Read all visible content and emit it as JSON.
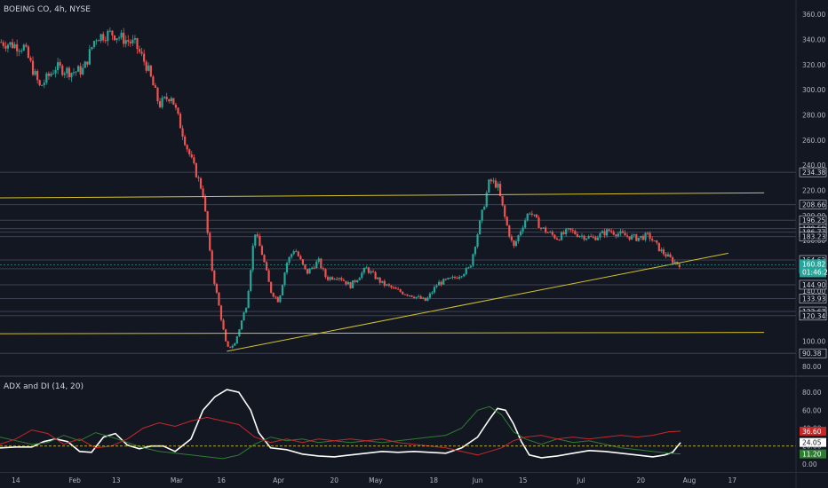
{
  "header": {
    "title": "BOEING CO, 4h, NYSE"
  },
  "indicator": {
    "title": "ADX and DI (14, 20)"
  },
  "colors": {
    "background": "#131722",
    "up": "#26a69a",
    "down": "#ef5350",
    "trendline": "#d4c12b",
    "hline": "#3d4251",
    "adx": "#ffffff",
    "plus_di": "#2e7d32",
    "minus_di": "#c62828",
    "threshold": "#e6d23a"
  },
  "chart_data": [
    {
      "type": "candlestick",
      "title": "BOEING CO, 4h, NYSE",
      "ylim": [
        75,
        370
      ],
      "yticks": [
        80,
        100,
        120,
        140,
        160,
        180,
        200,
        220,
        240,
        260,
        280,
        300,
        320,
        340,
        360
      ],
      "xlabels": [
        {
          "label": "14",
          "pos": 0.02
        },
        {
          "label": "Feb",
          "pos": 0.094
        },
        {
          "label": "13",
          "pos": 0.146
        },
        {
          "label": "Mar",
          "pos": 0.222
        },
        {
          "label": "16",
          "pos": 0.278
        },
        {
          "label": "Apr",
          "pos": 0.35
        },
        {
          "label": "20",
          "pos": 0.42
        },
        {
          "label": "May",
          "pos": 0.472
        },
        {
          "label": "18",
          "pos": 0.545
        },
        {
          "label": "Jun",
          "pos": 0.6
        },
        {
          "label": "15",
          "pos": 0.657
        },
        {
          "label": "Jul",
          "pos": 0.73
        },
        {
          "label": "20",
          "pos": 0.805
        },
        {
          "label": "Aug",
          "pos": 0.866
        },
        {
          "label": "17",
          "pos": 0.92
        }
      ],
      "price_path": [
        [
          0.0,
          338
        ],
        [
          0.03,
          334
        ],
        [
          0.05,
          302
        ],
        [
          0.07,
          318
        ],
        [
          0.09,
          314
        ],
        [
          0.105,
          316
        ],
        [
          0.12,
          342
        ],
        [
          0.14,
          345
        ],
        [
          0.17,
          336
        ],
        [
          0.185,
          318
        ],
        [
          0.2,
          288
        ],
        [
          0.215,
          296
        ],
        [
          0.235,
          254
        ],
        [
          0.245,
          236
        ],
        [
          0.255,
          218
        ],
        [
          0.265,
          162
        ],
        [
          0.275,
          128
        ],
        [
          0.285,
          94
        ],
        [
          0.295,
          98
        ],
        [
          0.31,
          130
        ],
        [
          0.32,
          188
        ],
        [
          0.33,
          168
        ],
        [
          0.34,
          140
        ],
        [
          0.35,
          132
        ],
        [
          0.36,
          162
        ],
        [
          0.37,
          174
        ],
        [
          0.385,
          154
        ],
        [
          0.4,
          164
        ],
        [
          0.41,
          150
        ],
        [
          0.425,
          152
        ],
        [
          0.44,
          144
        ],
        [
          0.46,
          158
        ],
        [
          0.48,
          146
        ],
        [
          0.5,
          140
        ],
        [
          0.52,
          136
        ],
        [
          0.535,
          132
        ],
        [
          0.55,
          146
        ],
        [
          0.57,
          150
        ],
        [
          0.59,
          158
        ],
        [
          0.605,
          200
        ],
        [
          0.615,
          228
        ],
        [
          0.625,
          224
        ],
        [
          0.635,
          196
        ],
        [
          0.645,
          174
        ],
        [
          0.655,
          190
        ],
        [
          0.665,
          204
        ],
        [
          0.68,
          190
        ],
        [
          0.7,
          182
        ],
        [
          0.715,
          188
        ],
        [
          0.73,
          184
        ],
        [
          0.745,
          182
        ],
        [
          0.765,
          188
        ],
        [
          0.785,
          184
        ],
        [
          0.8,
          182
        ],
        [
          0.815,
          184
        ],
        [
          0.83,
          172
        ],
        [
          0.845,
          164
        ],
        [
          0.855,
          160.82
        ]
      ],
      "levels": [
        234.38,
        208.66,
        196.25,
        189.59,
        186.77,
        183.23,
        164.62,
        157.7,
        144.9,
        133.93,
        123.67,
        120.34,
        90.38
      ],
      "current": {
        "price": "160.82",
        "countdown": "01:46:25"
      },
      "trendlines": [
        {
          "from": [
            0.0,
            214
          ],
          "to": [
            0.96,
            218
          ]
        },
        {
          "from": [
            0.0,
            106
          ],
          "to": [
            0.96,
            107
          ]
        },
        {
          "from": [
            0.285,
            92
          ],
          "to": [
            0.915,
            170
          ]
        }
      ]
    },
    {
      "type": "line",
      "title": "ADX and DI (14, 20)",
      "ylim": [
        -5,
        92
      ],
      "yticks": [
        0,
        20,
        40,
        60,
        80
      ],
      "threshold": 20,
      "labeled_values": [
        "36.60",
        "24.05",
        "11.20"
      ],
      "series": [
        {
          "key": "adx",
          "values": [
            [
              0,
              18
            ],
            [
              0.02,
              19
            ],
            [
              0.04,
              19
            ],
            [
              0.055,
              25
            ],
            [
              0.07,
              28
            ],
            [
              0.085,
              25
            ],
            [
              0.1,
              14
            ],
            [
              0.115,
              13
            ],
            [
              0.13,
              30
            ],
            [
              0.145,
              34
            ],
            [
              0.16,
              21
            ],
            [
              0.175,
              17
            ],
            [
              0.19,
              20
            ],
            [
              0.205,
              20
            ],
            [
              0.22,
              14
            ],
            [
              0.24,
              28
            ],
            [
              0.255,
              60
            ],
            [
              0.27,
              75
            ],
            [
              0.285,
              83
            ],
            [
              0.3,
              80
            ],
            [
              0.315,
              60
            ],
            [
              0.325,
              35
            ],
            [
              0.34,
              18
            ],
            [
              0.36,
              16
            ],
            [
              0.38,
              11
            ],
            [
              0.4,
              9
            ],
            [
              0.42,
              8
            ],
            [
              0.44,
              10
            ],
            [
              0.46,
              12
            ],
            [
              0.48,
              14
            ],
            [
              0.5,
              13
            ],
            [
              0.52,
              14
            ],
            [
              0.54,
              13
            ],
            [
              0.56,
              12
            ],
            [
              0.58,
              18
            ],
            [
              0.6,
              30
            ],
            [
              0.615,
              50
            ],
            [
              0.625,
              62
            ],
            [
              0.635,
              60
            ],
            [
              0.645,
              45
            ],
            [
              0.655,
              25
            ],
            [
              0.665,
              10
            ],
            [
              0.68,
              7
            ],
            [
              0.7,
              9
            ],
            [
              0.72,
              12
            ],
            [
              0.74,
              15
            ],
            [
              0.76,
              14
            ],
            [
              0.78,
              12
            ],
            [
              0.8,
              10
            ],
            [
              0.82,
              8
            ],
            [
              0.835,
              10
            ],
            [
              0.845,
              13
            ],
            [
              0.855,
              24.05
            ]
          ]
        },
        {
          "key": "plus_di",
          "values": [
            [
              0,
              30
            ],
            [
              0.02,
              26
            ],
            [
              0.04,
              22
            ],
            [
              0.06,
              24
            ],
            [
              0.08,
              32
            ],
            [
              0.1,
              26
            ],
            [
              0.12,
              35
            ],
            [
              0.14,
              30
            ],
            [
              0.16,
              24
            ],
            [
              0.18,
              18
            ],
            [
              0.2,
              14
            ],
            [
              0.22,
              12
            ],
            [
              0.24,
              10
            ],
            [
              0.26,
              8
            ],
            [
              0.28,
              6
            ],
            [
              0.3,
              10
            ],
            [
              0.32,
              22
            ],
            [
              0.34,
              30
            ],
            [
              0.36,
              26
            ],
            [
              0.38,
              28
            ],
            [
              0.4,
              24
            ],
            [
              0.42,
              26
            ],
            [
              0.44,
              24
            ],
            [
              0.46,
              26
            ],
            [
              0.48,
              24
            ],
            [
              0.5,
              26
            ],
            [
              0.52,
              28
            ],
            [
              0.54,
              30
            ],
            [
              0.56,
              32
            ],
            [
              0.58,
              40
            ],
            [
              0.6,
              60
            ],
            [
              0.615,
              64
            ],
            [
              0.63,
              55
            ],
            [
              0.645,
              36
            ],
            [
              0.66,
              28
            ],
            [
              0.68,
              22
            ],
            [
              0.7,
              28
            ],
            [
              0.72,
              24
            ],
            [
              0.74,
              26
            ],
            [
              0.76,
              22
            ],
            [
              0.78,
              18
            ],
            [
              0.8,
              16
            ],
            [
              0.82,
              14
            ],
            [
              0.84,
              12
            ],
            [
              0.855,
              11.2
            ]
          ]
        },
        {
          "key": "minus_di",
          "values": [
            [
              0,
              22
            ],
            [
              0.02,
              28
            ],
            [
              0.04,
              38
            ],
            [
              0.06,
              34
            ],
            [
              0.08,
              22
            ],
            [
              0.1,
              28
            ],
            [
              0.12,
              18
            ],
            [
              0.14,
              20
            ],
            [
              0.16,
              28
            ],
            [
              0.18,
              40
            ],
            [
              0.2,
              46
            ],
            [
              0.22,
              42
            ],
            [
              0.24,
              48
            ],
            [
              0.26,
              52
            ],
            [
              0.28,
              48
            ],
            [
              0.3,
              44
            ],
            [
              0.32,
              30
            ],
            [
              0.34,
              24
            ],
            [
              0.36,
              28
            ],
            [
              0.38,
              24
            ],
            [
              0.4,
              28
            ],
            [
              0.42,
              26
            ],
            [
              0.44,
              28
            ],
            [
              0.46,
              26
            ],
            [
              0.48,
              28
            ],
            [
              0.5,
              24
            ],
            [
              0.52,
              22
            ],
            [
              0.54,
              20
            ],
            [
              0.56,
              18
            ],
            [
              0.58,
              14
            ],
            [
              0.6,
              10
            ],
            [
              0.615,
              14
            ],
            [
              0.63,
              18
            ],
            [
              0.645,
              26
            ],
            [
              0.66,
              30
            ],
            [
              0.68,
              32
            ],
            [
              0.7,
              28
            ],
            [
              0.72,
              30
            ],
            [
              0.74,
              28
            ],
            [
              0.76,
              30
            ],
            [
              0.78,
              32
            ],
            [
              0.8,
              30
            ],
            [
              0.82,
              32
            ],
            [
              0.84,
              36
            ],
            [
              0.855,
              36.6
            ]
          ]
        }
      ]
    }
  ]
}
